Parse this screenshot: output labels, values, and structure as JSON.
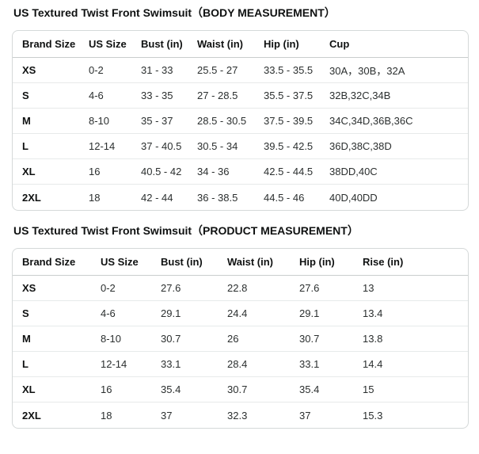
{
  "colors": {
    "background": "#ffffff",
    "text": "#0f1111",
    "cell_text": "#2b2f2f",
    "table_border": "#d5d9d9",
    "header_divider": "#c9cdcd",
    "row_divider": "#e7eaea"
  },
  "sections": [
    {
      "title": "US Textured Twist Front Swimsuit（BODY MEASUREMENT）",
      "columns": [
        "Brand Size",
        "US Size",
        "Bust (in)",
        "Waist (in)",
        "Hip (in)",
        "Cup"
      ],
      "rows": [
        [
          "XS",
          "0-2",
          "31 - 33",
          "25.5 - 27",
          "33.5 - 35.5",
          "30A，30B，32A"
        ],
        [
          "S",
          "4-6",
          "33 - 35",
          "27 - 28.5",
          "35.5 - 37.5",
          "32B,32C,34B"
        ],
        [
          "M",
          "8-10",
          "35 - 37",
          "28.5 - 30.5",
          "37.5 - 39.5",
          "34C,34D,36B,36C"
        ],
        [
          "L",
          "12-14",
          "37 - 40.5",
          "30.5 - 34",
          "39.5 - 42.5",
          "36D,38C,38D"
        ],
        [
          "XL",
          "16",
          "40.5 - 42",
          "34 - 36",
          "42.5 - 44.5",
          "38DD,40C"
        ],
        [
          "2XL",
          "18",
          "42 - 44",
          "36 - 38.5",
          "44.5 - 46",
          "40D,40DD"
        ]
      ]
    },
    {
      "title": "US Textured Twist Front Swimsuit（PRODUCT MEASUREMENT）",
      "columns": [
        "Brand Size",
        "US Size",
        "Bust (in)",
        "Waist (in)",
        "Hip (in)",
        "Rise (in)"
      ],
      "rows": [
        [
          "XS",
          "0-2",
          "27.6",
          "22.8",
          "27.6",
          "13"
        ],
        [
          "S",
          "4-6",
          "29.1",
          "24.4",
          "29.1",
          "13.4"
        ],
        [
          "M",
          "8-10",
          "30.7",
          "26",
          "30.7",
          "13.8"
        ],
        [
          "L",
          "12-14",
          "33.1",
          "28.4",
          "33.1",
          "14.4"
        ],
        [
          "XL",
          "16",
          "35.4",
          "30.7",
          "35.4",
          "15"
        ],
        [
          "2XL",
          "18",
          "37",
          "32.3",
          "37",
          "15.3"
        ]
      ]
    }
  ]
}
